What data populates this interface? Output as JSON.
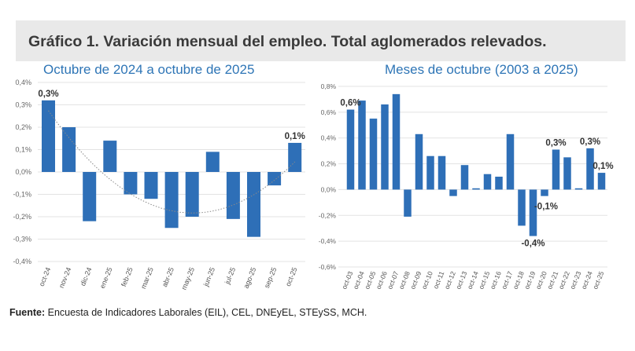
{
  "title": "Gráfico 1. Variación mensual del empleo. Total aglomerados relevados.",
  "footer": {
    "label": "Fuente:",
    "text": " Encuesta de Indicadores Laborales (EIL), CEL, DNEyEL, STEySS, MCH."
  },
  "colors": {
    "bar": "#2e6fb7",
    "subtitle": "#2e75b6",
    "banner": "#e9e9e9",
    "trendline": "#8a8a8a"
  },
  "chart_data": [
    {
      "type": "bar",
      "title": "Octubre de 2024 a octubre de 2025",
      "categories": [
        "oct-24",
        "nov-24",
        "dic-24",
        "ene-25",
        "feb-25",
        "mar-25",
        "abr-25",
        "may-25",
        "jun-25",
        "jul-25",
        "ago-25",
        "sep-25",
        "oct-25"
      ],
      "values": [
        0.32,
        0.2,
        -0.22,
        0.14,
        -0.1,
        -0.12,
        -0.25,
        -0.2,
        0.09,
        -0.21,
        -0.29,
        -0.06,
        0.13
      ],
      "ylim": [
        -0.4,
        0.4
      ],
      "yticks": [
        "0,4%",
        "0,3%",
        "0,2%",
        "0,1%",
        "0,0%",
        "-0,1%",
        "-0,2%",
        "-0,3%",
        "-0,4%"
      ],
      "grid": true,
      "trendline": "polynomial, dotted",
      "data_labels": [
        {
          "category": "oct-24",
          "text": "0,3%"
        },
        {
          "category": "oct-25",
          "text": "0,1%"
        }
      ]
    },
    {
      "type": "bar",
      "title": "Meses de octubre (2003 a 2025)",
      "categories": [
        "oct-03",
        "oct-04",
        "oct-05",
        "oct-06",
        "oct-07",
        "oct-08",
        "oct-09",
        "oct-10",
        "oct-11",
        "oct-12",
        "oct-13",
        "oct-14",
        "oct-15",
        "oct-16",
        "oct-17",
        "oct-18",
        "oct-19",
        "oct-20",
        "oct-21",
        "oct-22",
        "oct-23",
        "oct-24",
        "oct-25"
      ],
      "values": [
        0.62,
        0.69,
        0.55,
        0.66,
        0.74,
        -0.21,
        0.43,
        0.26,
        0.26,
        -0.05,
        0.19,
        0.01,
        0.12,
        0.1,
        0.43,
        -0.28,
        -0.36,
        -0.05,
        0.31,
        0.25,
        0.01,
        0.32,
        0.13
      ],
      "ylim": [
        -0.6,
        0.8
      ],
      "yticks": [
        "0,8%",
        "0,6%",
        "0,4%",
        "0,2%",
        "0,0%",
        "-0,2%",
        "-0,4%",
        "-0,6%"
      ],
      "grid": true,
      "data_labels": [
        {
          "category": "oct-03",
          "text": "0,6%"
        },
        {
          "category": "oct-19",
          "text": "-0,4%"
        },
        {
          "category": "oct-20",
          "text": "-0,1%"
        },
        {
          "category": "oct-21",
          "text": "0,3%"
        },
        {
          "category": "oct-24",
          "text": "0,3%"
        },
        {
          "category": "oct-25",
          "text": "0,1%"
        }
      ]
    }
  ]
}
